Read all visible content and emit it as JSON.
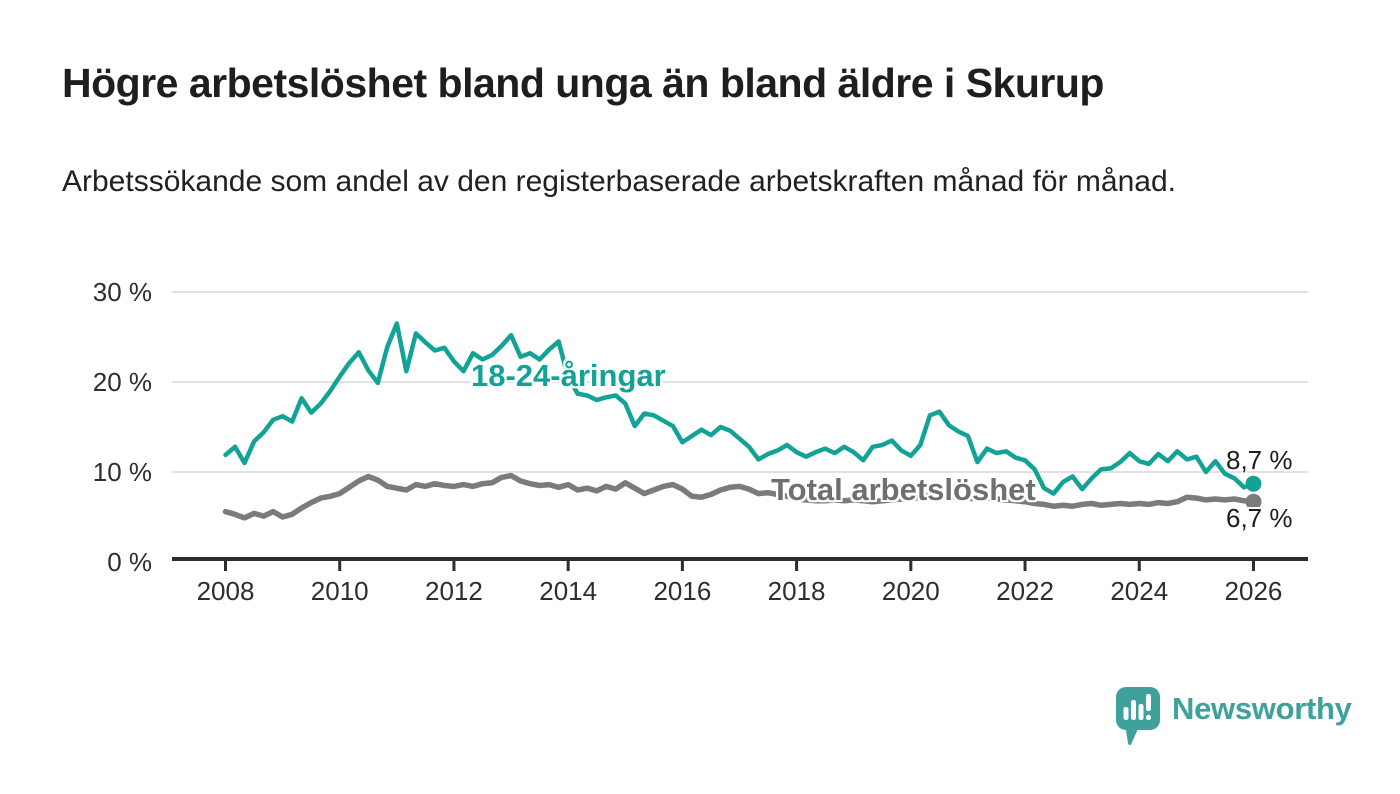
{
  "header": {
    "title": "Högre arbetslöshet bland unga än bland äldre i Skurup",
    "subtitle": "Arbetssökande som andel av den registerbaserade arbetskraften månad för månad."
  },
  "chart_data": {
    "type": "line",
    "title": "Högre arbetslöshet bland unga än bland äldre i Skurup",
    "subtitle": "Arbetssökande som andel av den registerbaserade arbetskraften månad för månad.",
    "grid": "horizontal-only",
    "legend_position": "inline-labels-on-lines",
    "x_axis": {
      "ticks": [
        2008,
        2010,
        2012,
        2014,
        2016,
        2018,
        2020,
        2022,
        2024,
        2026
      ],
      "unit": "year"
    },
    "y_axis": {
      "ticks": [
        0,
        10,
        20,
        30
      ],
      "tick_labels": [
        "0 %",
        "10 %",
        "20 %",
        "30 %"
      ],
      "unit": "%",
      "range": [
        0,
        30
      ]
    },
    "series": [
      {
        "name": "18-24-åringar",
        "color": "#13A296",
        "line_width": 4.5,
        "end_value": 8.7,
        "end_value_label": "8,7 %",
        "x_start": 2008.0,
        "x_step_years": 0.166667,
        "values": [
          11.9,
          12.8,
          11.0,
          13.4,
          14.4,
          15.8,
          16.2,
          15.6,
          18.2,
          16.6,
          17.6,
          19.0,
          20.6,
          22.1,
          23.3,
          21.3,
          19.9,
          23.9,
          26.5,
          21.2,
          25.4,
          24.4,
          23.5,
          23.8,
          22.3,
          21.2,
          23.2,
          22.5,
          23.0,
          24.0,
          25.2,
          22.8,
          23.2,
          22.5,
          23.6,
          24.5,
          20.5,
          18.7,
          18.5,
          18.0,
          18.3,
          18.5,
          17.6,
          15.1,
          16.5,
          16.3,
          15.7,
          15.1,
          13.3,
          14.0,
          14.7,
          14.1,
          15.0,
          14.6,
          13.7,
          12.8,
          11.4,
          12.0,
          12.4,
          13.0,
          12.2,
          11.7,
          12.2,
          12.6,
          12.1,
          12.8,
          12.2,
          11.3,
          12.8,
          13.0,
          13.5,
          12.4,
          11.8,
          13.0,
          16.3,
          16.7,
          15.2,
          14.5,
          14.0,
          11.1,
          12.6,
          12.1,
          12.3,
          11.6,
          11.3,
          10.3,
          8.2,
          7.6,
          8.9,
          9.5,
          8.1,
          9.3,
          10.3,
          10.4,
          11.1,
          12.1,
          11.2,
          10.9,
          12.0,
          11.2,
          12.3,
          11.4,
          11.7,
          10.0,
          11.2,
          9.8,
          9.3,
          8.3,
          8.7
        ]
      },
      {
        "name": "Total arbetslöshet",
        "color": "#7B7B7B",
        "label_color": "#6F6F6F",
        "line_width": 5.5,
        "end_value": 6.7,
        "end_value_label": "6,7 %",
        "x_start": 2008.0,
        "x_step_years": 0.166667,
        "values": [
          5.6,
          5.3,
          4.9,
          5.4,
          5.1,
          5.6,
          5.0,
          5.3,
          6.0,
          6.6,
          7.1,
          7.3,
          7.6,
          8.3,
          9.0,
          9.5,
          9.1,
          8.4,
          8.2,
          8.0,
          8.6,
          8.4,
          8.7,
          8.5,
          8.4,
          8.6,
          8.4,
          8.7,
          8.8,
          9.4,
          9.6,
          9.0,
          8.7,
          8.5,
          8.6,
          8.3,
          8.6,
          8.0,
          8.2,
          7.9,
          8.4,
          8.1,
          8.8,
          8.2,
          7.6,
          8.0,
          8.4,
          8.6,
          8.1,
          7.3,
          7.2,
          7.5,
          8.0,
          8.3,
          8.4,
          8.1,
          7.6,
          7.7,
          7.5,
          7.3,
          7.0,
          6.9,
          6.8,
          6.8,
          6.9,
          6.8,
          6.9,
          6.8,
          6.7,
          6.8,
          6.9,
          7.0,
          7.0,
          7.2,
          7.4,
          7.4,
          7.3,
          7.2,
          7.1,
          7.0,
          7.1,
          7.0,
          6.9,
          6.8,
          6.7,
          6.5,
          6.4,
          6.2,
          6.3,
          6.2,
          6.4,
          6.5,
          6.3,
          6.4,
          6.5,
          6.4,
          6.5,
          6.4,
          6.6,
          6.5,
          6.7,
          7.2,
          7.1,
          6.9,
          7.0,
          6.9,
          7.0,
          6.8,
          6.7
        ]
      }
    ],
    "colors": {
      "gridline": "#D9D9D9",
      "axis": "#2D2D2D",
      "tick_text": "#2E2E2E",
      "value_text": "#1D1D1D"
    }
  },
  "footer": {
    "brand": "Newsworthy",
    "brand_color": "#3EA19B"
  }
}
